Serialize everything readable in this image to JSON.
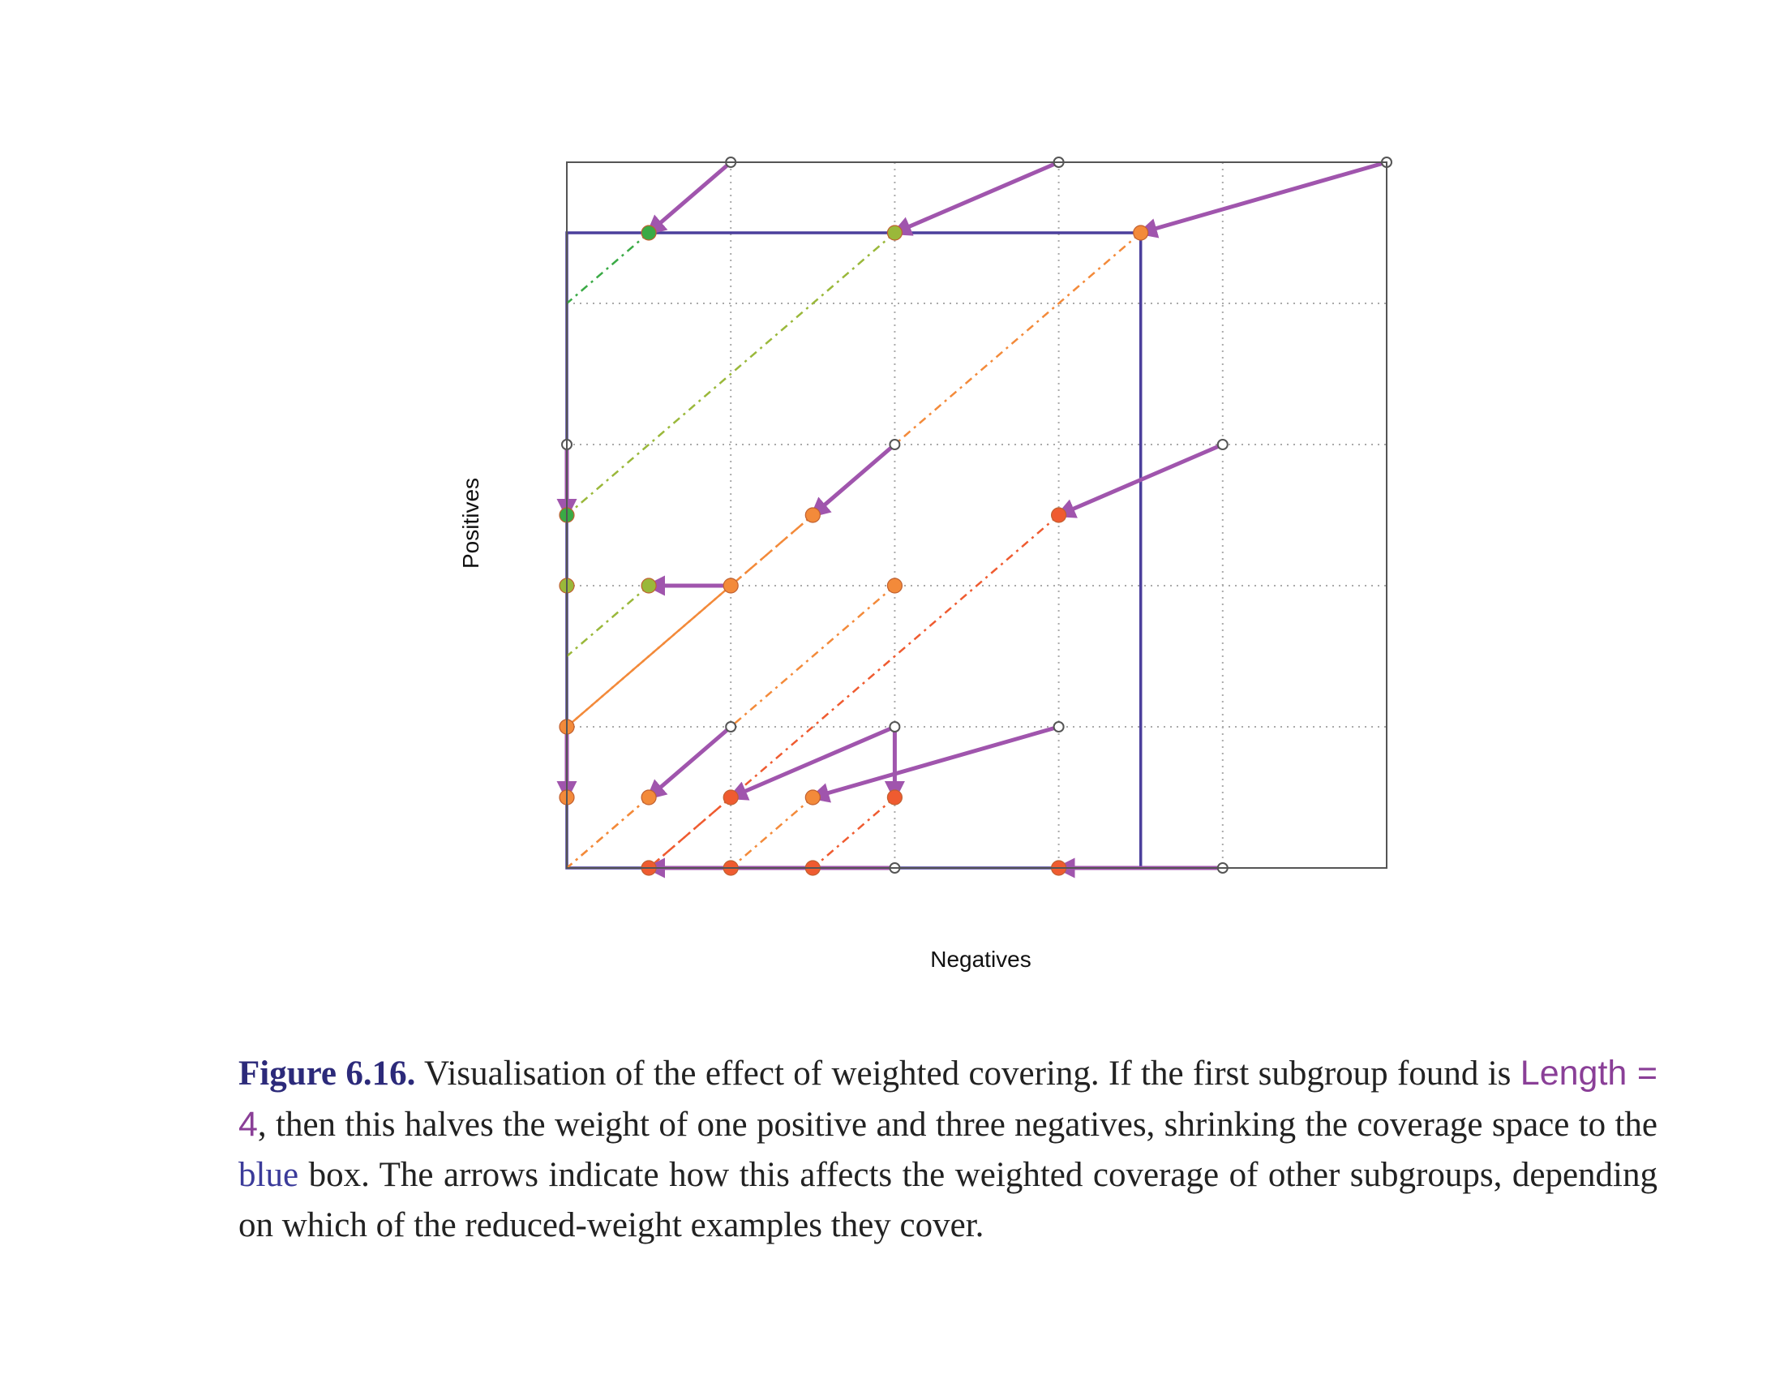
{
  "chart_data": {
    "type": "scatter",
    "xlabel": "Negatives",
    "ylabel": "Positives",
    "xlim": [
      0,
      5
    ],
    "ylim": [
      0,
      5
    ],
    "grid": true,
    "colors": {
      "arrow": "#a055ad",
      "blue_box": "#4b3f9c",
      "green": "#3aaa45",
      "olive": "#9ab83a",
      "orange": "#f38a3a",
      "red_orange": "#ef5b30",
      "hollow": "#555555"
    },
    "blue_box": {
      "x": [
        0,
        3.5
      ],
      "y": [
        0,
        4.5
      ]
    },
    "original_points": [
      {
        "x": 1,
        "y": 5
      },
      {
        "x": 3,
        "y": 5
      },
      {
        "x": 5,
        "y": 5
      },
      {
        "x": 0,
        "y": 3
      },
      {
        "x": 2,
        "y": 3
      },
      {
        "x": 4,
        "y": 3
      },
      {
        "x": 1,
        "y": 1
      },
      {
        "x": 2,
        "y": 1
      },
      {
        "x": 3,
        "y": 1
      },
      {
        "x": 2,
        "y": 0
      },
      {
        "x": 4,
        "y": 0
      },
      {
        "x": 1,
        "y": 2
      },
      {
        "x": 0,
        "y": 1
      }
    ],
    "weighted_points": [
      {
        "x": 0.5,
        "y": 4.5,
        "color": "green"
      },
      {
        "x": 2,
        "y": 4.5,
        "color": "olive"
      },
      {
        "x": 3.5,
        "y": 4.5,
        "color": "orange"
      },
      {
        "x": 0,
        "y": 2.5,
        "color": "green"
      },
      {
        "x": 1.5,
        "y": 2.5,
        "color": "orange"
      },
      {
        "x": 3,
        "y": 2.5,
        "color": "red_orange"
      },
      {
        "x": 0,
        "y": 2,
        "color": "olive"
      },
      {
        "x": 0.5,
        "y": 2,
        "color": "olive"
      },
      {
        "x": 1,
        "y": 2,
        "color": "orange"
      },
      {
        "x": 2,
        "y": 2,
        "color": "orange"
      },
      {
        "x": 0,
        "y": 1,
        "color": "orange"
      },
      {
        "x": 0,
        "y": 0.5,
        "color": "orange"
      },
      {
        "x": 0.5,
        "y": 0.5,
        "color": "orange"
      },
      {
        "x": 1,
        "y": 0.5,
        "color": "red_orange"
      },
      {
        "x": 1.5,
        "y": 0.5,
        "color": "orange"
      },
      {
        "x": 2,
        "y": 0.5,
        "color": "red_orange"
      },
      {
        "x": 0.5,
        "y": 0,
        "color": "red_orange"
      },
      {
        "x": 1,
        "y": 0,
        "color": "red_orange"
      },
      {
        "x": 1.5,
        "y": 0,
        "color": "red_orange"
      },
      {
        "x": 3,
        "y": 0,
        "color": "red_orange"
      }
    ],
    "arrows": [
      {
        "from": [
          1,
          5
        ],
        "to": [
          0.5,
          4.5
        ]
      },
      {
        "from": [
          3,
          5
        ],
        "to": [
          2,
          4.5
        ]
      },
      {
        "from": [
          5,
          5
        ],
        "to": [
          3.5,
          4.5
        ]
      },
      {
        "from": [
          0,
          3
        ],
        "to": [
          0,
          2.5
        ]
      },
      {
        "from": [
          2,
          3
        ],
        "to": [
          1.5,
          2.5
        ]
      },
      {
        "from": [
          4,
          3
        ],
        "to": [
          3,
          2.5
        ]
      },
      {
        "from": [
          1,
          2
        ],
        "to": [
          0.5,
          2
        ]
      },
      {
        "from": [
          0,
          1
        ],
        "to": [
          0,
          0.5
        ]
      },
      {
        "from": [
          1,
          1
        ],
        "to": [
          0.5,
          0.5
        ]
      },
      {
        "from": [
          2,
          1
        ],
        "to": [
          1,
          0.5
        ]
      },
      {
        "from": [
          3,
          1
        ],
        "to": [
          1.5,
          0.5
        ]
      },
      {
        "from": [
          2,
          1
        ],
        "to": [
          2,
          0.5
        ]
      },
      {
        "from": [
          2,
          0
        ],
        "to": [
          0.5,
          0
        ]
      },
      {
        "from": [
          4,
          0
        ],
        "to": [
          3,
          0
        ]
      }
    ],
    "dashed_lines": [
      {
        "from": [
          0.5,
          4.5
        ],
        "to": [
          0,
          4
        ],
        "color": "green"
      },
      {
        "from": [
          2,
          4.5
        ],
        "to": [
          0,
          2.5
        ],
        "color": "olive"
      },
      {
        "from": [
          0.5,
          2
        ],
        "to": [
          0,
          1.5
        ],
        "color": "olive"
      },
      {
        "from": [
          3.5,
          4.5
        ],
        "to": [
          0,
          1
        ],
        "color": "orange"
      },
      {
        "from": [
          1.5,
          2.5
        ],
        "to": [
          0,
          1
        ],
        "color": "orange"
      },
      {
        "from": [
          3,
          2.5
        ],
        "to": [
          0.5,
          0
        ],
        "color": "red_orange"
      },
      {
        "from": [
          2,
          2
        ],
        "to": [
          0,
          0
        ],
        "color": "orange"
      },
      {
        "from": [
          1,
          2
        ],
        "to": [
          0,
          1
        ],
        "color": "orange"
      },
      {
        "from": [
          2,
          0.5
        ],
        "to": [
          1.5,
          0
        ],
        "color": "red_orange"
      },
      {
        "from": [
          1.5,
          0.5
        ],
        "to": [
          1,
          0
        ],
        "color": "orange"
      },
      {
        "from": [
          1,
          0.5
        ],
        "to": [
          0.5,
          0
        ],
        "color": "red_orange"
      },
      {
        "from": [
          0.5,
          0.5
        ],
        "to": [
          0,
          0
        ],
        "color": "orange"
      },
      {
        "from": [
          3,
          0
        ],
        "to": [
          3,
          0
        ],
        "color": "red_orange"
      }
    ]
  },
  "caption": {
    "figure_number": "Figure 6.16.",
    "text_1": " Visualisation of the effect of weighted covering. If the first subgroup found is ",
    "length_eq": "Length = 4",
    "text_2": ", then this halves the weight of one positive and three negatives, shrinking the coverage space to the ",
    "blue_word": "blue",
    "text_3": " box. The arrows indicate how this affects the weighted coverage of other subgroups, depending on which of the reduced-weight examples they cover."
  }
}
